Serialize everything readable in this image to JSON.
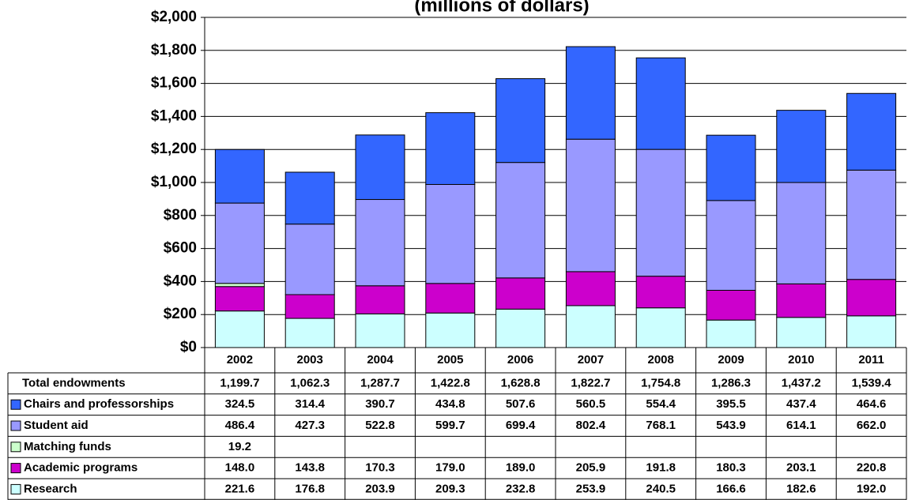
{
  "chart_data": {
    "type": "bar",
    "stacked": true,
    "title": "(millions of dollars)",
    "categories": [
      "2002",
      "2003",
      "2004",
      "2005",
      "2006",
      "2007",
      "2008",
      "2009",
      "2010",
      "2011"
    ],
    "series": [
      {
        "name": "Research",
        "color": "#ccffff",
        "values": [
          221.6,
          176.8,
          203.9,
          209.3,
          232.8,
          253.9,
          240.5,
          166.6,
          182.6,
          192.0
        ],
        "value_labels": [
          "221.6",
          "176.8",
          "203.9",
          "209.3",
          "232.8",
          "253.9",
          "240.5",
          "166.6",
          "182.6",
          "192.0"
        ]
      },
      {
        "name": "Academic programs",
        "color": "#cc00cc",
        "values": [
          148.0,
          143.8,
          170.3,
          179.0,
          189.0,
          205.9,
          191.8,
          180.3,
          203.1,
          220.8
        ],
        "value_labels": [
          "148.0",
          "143.8",
          "170.3",
          "179.0",
          "189.0",
          "205.9",
          "191.8",
          "180.3",
          "203.1",
          "220.8"
        ]
      },
      {
        "name": "Matching funds",
        "color": "#ccffcc",
        "values": [
          19.2,
          null,
          null,
          null,
          null,
          null,
          null,
          null,
          null,
          null
        ],
        "value_labels": [
          "19.2",
          null,
          null,
          null,
          null,
          null,
          null,
          null,
          null,
          null
        ]
      },
      {
        "name": "Student aid",
        "color": "#9999ff",
        "values": [
          486.4,
          427.3,
          522.8,
          599.7,
          699.4,
          802.4,
          768.1,
          543.9,
          614.1,
          662.0
        ],
        "value_labels": [
          "486.4",
          "427.3",
          "522.8",
          "599.7",
          "699.4",
          "802.4",
          "768.1",
          "543.9",
          "614.1",
          "662.0"
        ]
      },
      {
        "name": "Chairs and professorships",
        "color": "#3366ff",
        "values": [
          324.5,
          314.4,
          390.7,
          434.8,
          507.6,
          560.5,
          554.4,
          395.5,
          437.4,
          464.6
        ],
        "value_labels": [
          "324.5",
          "314.4",
          "390.7",
          "434.8",
          "507.6",
          "560.5",
          "554.4",
          "395.5",
          "437.4",
          "464.6"
        ]
      }
    ],
    "totals": {
      "name": "Total endowments",
      "values": [
        1199.7,
        1062.3,
        1287.7,
        1422.8,
        1628.8,
        1822.7,
        1754.8,
        1286.3,
        1437.2,
        1539.4
      ],
      "value_labels": [
        "1,199.7",
        "1,062.3",
        "1,287.7",
        "1,422.8",
        "1,628.8",
        "1,822.7",
        "1,754.8",
        "1,286.3",
        "1,437.2",
        "1,539.4"
      ]
    },
    "ylim": [
      0,
      2000
    ],
    "yticks": [
      {
        "value": 0,
        "label": "$0"
      },
      {
        "value": 200,
        "label": "$200"
      },
      {
        "value": 400,
        "label": "$400"
      },
      {
        "value": 600,
        "label": "$600"
      },
      {
        "value": 800,
        "label": "$800"
      },
      {
        "value": 1000,
        "label": "$1,000"
      },
      {
        "value": 1200,
        "label": "$1,200"
      },
      {
        "value": 1400,
        "label": "$1,400"
      },
      {
        "value": 1600,
        "label": "$1,600"
      },
      {
        "value": 1800,
        "label": "$1,800"
      },
      {
        "value": 2000,
        "label": "$2,000"
      }
    ],
    "grid": true
  }
}
